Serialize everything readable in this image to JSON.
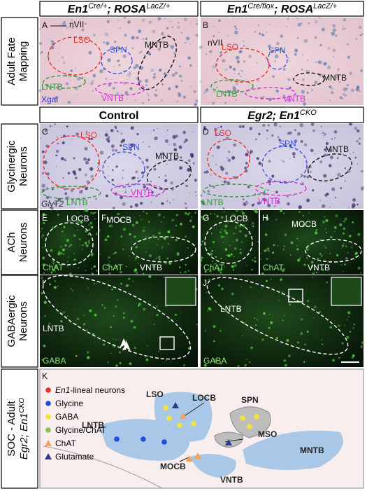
{
  "columns_top": [
    {
      "parts": [
        "En1",
        "Cre/+",
        "; ROSA",
        "LacZ/+"
      ]
    },
    {
      "parts": [
        "En1",
        "Cre/flox",
        "; ROSA",
        "LacZ/+"
      ]
    }
  ],
  "columns_mid": [
    {
      "parts": [
        "Control"
      ]
    },
    {
      "parts": [
        "Egr2; En1",
        "CKO"
      ]
    }
  ],
  "row_labels": [
    [
      "Adult Fate",
      "Mapping"
    ],
    [
      "Glycinergic",
      "Neurons"
    ],
    [
      "ACh",
      "Neurons"
    ],
    [
      "GABAergic",
      "Neurons"
    ]
  ],
  "k_label": {
    "parts": [
      "SOC - Adult",
      "Egr2; En1",
      "CKO"
    ]
  },
  "panels": [
    {
      "letter": "A",
      "labels": [
        "nVII",
        "LSO",
        "SPN",
        "MNTB",
        "LNTB",
        "VNTB",
        "Xgal"
      ]
    },
    {
      "letter": "B",
      "labels": [
        "nVII",
        "LSO",
        "SPN",
        "MNTB",
        "LNTB",
        "VNTB"
      ]
    },
    {
      "letter": "C",
      "labels": [
        "LSO",
        "SPN",
        "MNTB",
        "VNTB",
        "LNTB",
        "GlyT2"
      ]
    },
    {
      "letter": "D",
      "labels": [
        "LSO",
        "SPN",
        "MNTB",
        "LNTB",
        "VNTB"
      ]
    },
    {
      "letter": "E",
      "labels": [
        "LOCB",
        "ChAT"
      ]
    },
    {
      "letter": "F",
      "labels": [
        "MOCB",
        "ChAT",
        "VNTB"
      ]
    },
    {
      "letter": "G",
      "labels": [
        "LOCB",
        "ChAT"
      ]
    },
    {
      "letter": "H",
      "labels": [
        "MOCB",
        "ChAT",
        "VNTB"
      ]
    },
    {
      "letter": "I",
      "labels": [
        "LNTB",
        "GABA"
      ]
    },
    {
      "letter": "J",
      "labels": [
        "LNTB",
        "GABA"
      ]
    },
    {
      "letter": "K",
      "labels": [
        "LSO",
        "LOCB",
        "SPN",
        "MSO",
        "MNTB",
        "LNTB",
        "MOCB",
        "VNTB"
      ]
    }
  ],
  "legend": [
    [
      "En1",
      "-lineal neurons"
    ],
    [
      "Glycine"
    ],
    [
      "GABA"
    ],
    [
      "Glycine/ChAT"
    ],
    [
      "ChAT"
    ],
    [
      "Glutamate"
    ]
  ]
}
